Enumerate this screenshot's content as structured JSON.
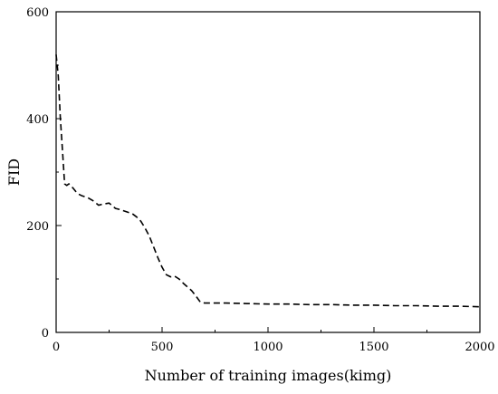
{
  "chart_data": {
    "type": "line",
    "title": "",
    "xlabel": "Number of training images(kimg)",
    "ylabel": "FID",
    "xlim": [
      0,
      2000
    ],
    "ylim": [
      0,
      600
    ],
    "xticks": [
      0,
      500,
      1000,
      1500,
      2000
    ],
    "yticks": [
      0,
      200,
      400,
      600
    ],
    "x_tick_labels": [
      "0",
      "500",
      "1000",
      "1500",
      "2000"
    ],
    "y_tick_labels": [
      "0",
      "200",
      "400",
      "600"
    ],
    "grid": false,
    "legend": "none",
    "series": [
      {
        "line_style": "dashed",
        "color": "#000000",
        "x": [
          0,
          10,
          20,
          30,
          40,
          50,
          60,
          80,
          100,
          120,
          150,
          180,
          200,
          220,
          250,
          280,
          300,
          330,
          360,
          380,
          400,
          420,
          440,
          460,
          480,
          500,
          520,
          540,
          560,
          580,
          600,
          620,
          640,
          660,
          680,
          700,
          800,
          900,
          1000,
          1100,
          1200,
          1300,
          1400,
          1500,
          1600,
          1700,
          1800,
          1900,
          2000
        ],
        "y": [
          520,
          480,
          400,
          340,
          278,
          275,
          278,
          270,
          260,
          256,
          252,
          245,
          238,
          240,
          242,
          232,
          230,
          226,
          222,
          216,
          208,
          195,
          180,
          160,
          140,
          122,
          108,
          104,
          105,
          100,
          92,
          85,
          78,
          68,
          57,
          55,
          55,
          54,
          53,
          53,
          52,
          52,
          51,
          51,
          50,
          50,
          49,
          49,
          48
        ]
      }
    ]
  }
}
